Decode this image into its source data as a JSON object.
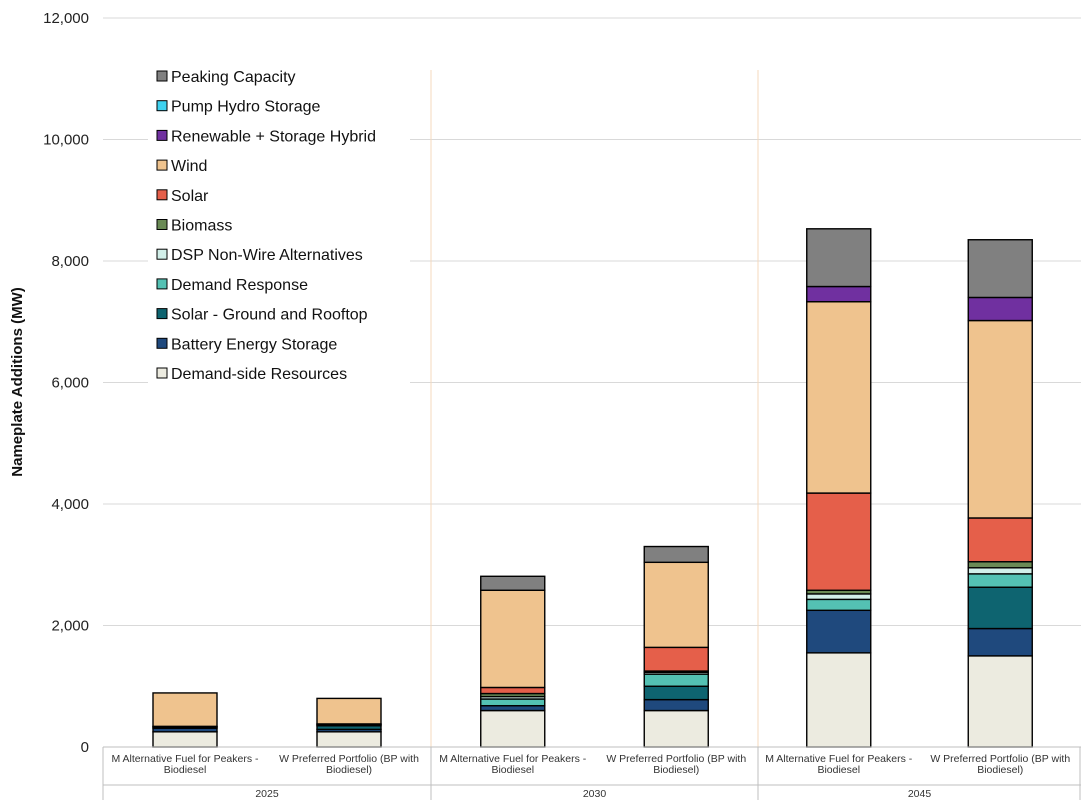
{
  "chart_data": {
    "type": "bar",
    "stacked": true,
    "ylabel": "Nameplate Additions (MW)",
    "ylim": [
      0,
      12000
    ],
    "yticks": [
      0,
      2000,
      4000,
      6000,
      8000,
      10000,
      12000
    ],
    "ytick_labels": [
      "0",
      "2,000",
      "4,000",
      "6,000",
      "8,000",
      "10,000",
      "12,000"
    ],
    "grid": true,
    "legend_position": "top-left",
    "groups": [
      "2025",
      "2030",
      "2045"
    ],
    "categories": [
      [
        "M Alternative Fuel for Peakers -",
        "Biodiesel"
      ],
      [
        "W Preferred Portfolio (BP with",
        "Biodiesel)"
      ],
      [
        "M Alternative Fuel for Peakers -",
        "Biodiesel"
      ],
      [
        "W Preferred Portfolio (BP with",
        "Biodiesel)"
      ],
      [
        "M Alternative Fuel for Peakers -",
        "Biodiesel"
      ],
      [
        "W Preferred Portfolio (BP with",
        "Biodiesel)"
      ]
    ],
    "category_group": [
      0,
      0,
      1,
      1,
      2,
      2
    ],
    "series": [
      {
        "name": "Demand-side Resources",
        "color": "#ecebe0",
        "values": [
          250,
          250,
          600,
          600,
          1550,
          1500
        ]
      },
      {
        "name": "Battery Energy Storage",
        "color": "#1f497d",
        "values": [
          60,
          40,
          80,
          180,
          700,
          450
        ]
      },
      {
        "name": "Solar - Ground and Rooftop",
        "color": "#0e6470",
        "values": [
          0,
          60,
          0,
          220,
          0,
          680
        ]
      },
      {
        "name": "Demand Response",
        "color": "#54c1b3",
        "values": [
          20,
          20,
          110,
          200,
          180,
          220
        ]
      },
      {
        "name": "DSP Non-Wire Alternatives",
        "color": "#d2efe9",
        "values": [
          10,
          10,
          40,
          30,
          90,
          100
        ]
      },
      {
        "name": "Biomass",
        "color": "#6a8a55",
        "values": [
          0,
          0,
          50,
          20,
          60,
          100
        ]
      },
      {
        "name": "Solar",
        "color": "#e55f4a",
        "values": [
          0,
          0,
          100,
          390,
          1600,
          720
        ]
      },
      {
        "name": "Wind",
        "color": "#efc38e",
        "values": [
          550,
          420,
          1600,
          1400,
          3150,
          3250
        ]
      },
      {
        "name": "Renewable + Storage Hybrid",
        "color": "#7030a0",
        "values": [
          0,
          0,
          0,
          0,
          250,
          380
        ]
      },
      {
        "name": "Pump Hydro Storage",
        "color": "#3fd2f0",
        "values": [
          0,
          0,
          0,
          0,
          0,
          0
        ]
      },
      {
        "name": "Peaking Capacity",
        "color": "#808080",
        "values": [
          0,
          0,
          230,
          260,
          950,
          950
        ]
      }
    ]
  }
}
